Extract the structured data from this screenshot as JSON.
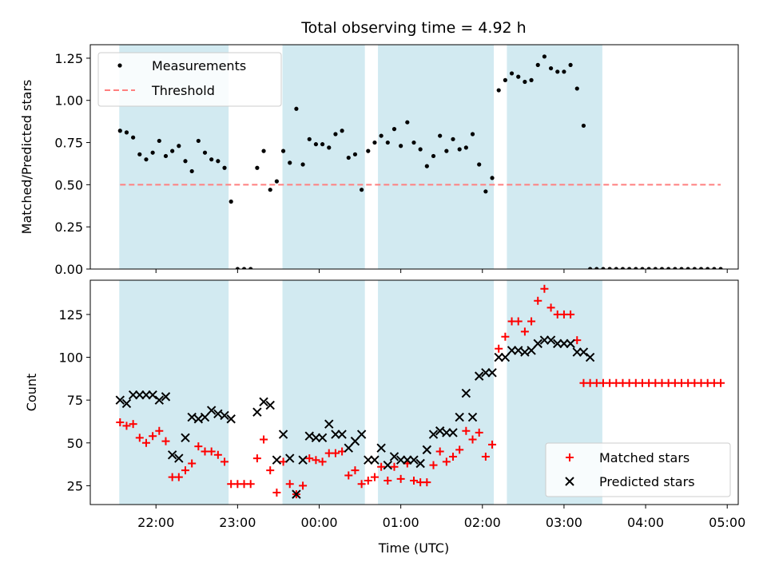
{
  "chart_data": {
    "type": "scatter",
    "title": "Total observing time = 4.92 h",
    "xlabel": "Time (UTC)",
    "x_ticks": [
      "22:00",
      "23:00",
      "00:00",
      "01:00",
      "02:00",
      "03:00",
      "04:00",
      "05:00"
    ],
    "x_tick_hours": [
      0,
      1,
      2,
      3,
      4,
      5,
      6,
      7
    ],
    "x_range_hours": [
      -0.805,
      7.135
    ],
    "shaded_bands_hours": [
      [
        -0.45,
        0.89
      ],
      [
        1.55,
        2.56
      ],
      [
        2.72,
        4.14
      ],
      [
        4.3,
        5.47
      ]
    ],
    "band_color": "#add8e6",
    "x_hours": [
      -0.44,
      -0.36,
      -0.28,
      -0.2,
      -0.12,
      -0.04,
      0.04,
      0.12,
      0.2,
      0.28,
      0.36,
      0.44,
      0.52,
      0.6,
      0.68,
      0.76,
      0.84,
      0.92,
      1.0,
      1.08,
      1.16,
      1.24,
      1.32,
      1.4,
      1.48,
      1.56,
      1.64,
      1.72,
      1.8,
      1.88,
      1.96,
      2.04,
      2.12,
      2.2,
      2.28,
      2.36,
      2.44,
      2.52,
      2.6,
      2.68,
      2.76,
      2.84,
      2.92,
      3.0,
      3.08,
      3.16,
      3.24,
      3.32,
      3.4,
      3.48,
      3.56,
      3.64,
      3.72,
      3.8,
      3.88,
      3.96,
      4.04,
      4.12,
      4.2,
      4.28,
      4.36,
      4.44,
      4.52,
      4.6,
      4.68,
      4.76,
      4.84,
      4.92,
      5.0,
      5.08,
      5.16,
      5.24,
      5.32,
      5.4,
      5.48,
      5.56,
      5.64,
      5.72,
      5.8,
      5.88,
      5.96,
      6.04,
      6.12,
      6.2,
      6.28,
      6.36,
      6.44,
      6.52,
      6.6,
      6.68,
      6.76,
      6.84,
      6.92
    ],
    "panels": [
      {
        "ylabel": "Matched/Predicted stars",
        "ylim": [
          0,
          1.33
        ],
        "y_ticks": [
          "0.00",
          "0.25",
          "0.50",
          "0.75",
          "1.00",
          "1.25"
        ],
        "y_tick_values": [
          0,
          0.25,
          0.5,
          0.75,
          1.0,
          1.25
        ],
        "legend_position": "upper-left",
        "series": [
          {
            "name": "Measurements",
            "marker": "dot",
            "color": "#000000",
            "values": [
              0.82,
              0.81,
              0.78,
              0.68,
              0.65,
              0.69,
              0.76,
              0.67,
              0.7,
              0.73,
              0.64,
              0.58,
              0.76,
              0.69,
              0.65,
              0.64,
              0.6,
              0.4,
              0.0,
              0.0,
              0.0,
              0.6,
              0.7,
              0.47,
              0.52,
              0.7,
              0.63,
              0.95,
              0.62,
              0.77,
              0.74,
              0.74,
              0.72,
              0.8,
              0.82,
              0.66,
              0.68,
              0.47,
              0.7,
              0.75,
              0.79,
              0.75,
              0.83,
              0.73,
              0.87,
              0.75,
              0.71,
              0.61,
              0.67,
              0.79,
              0.7,
              0.77,
              0.71,
              0.72,
              0.8,
              0.62,
              0.46,
              0.54,
              1.06,
              1.12,
              1.16,
              1.14,
              1.11,
              1.12,
              1.21,
              1.26,
              1.19,
              1.17,
              1.17,
              1.21,
              1.07,
              0.85,
              0.0,
              0.0,
              0.0,
              0.0,
              0.0,
              0.0,
              0.0,
              0.0,
              0.0,
              0.0,
              0.0,
              0.0,
              0.0,
              0.0,
              0.0,
              0.0,
              0.0,
              0.0,
              0.0,
              0.0,
              0.0
            ]
          },
          {
            "name": "Threshold",
            "marker": "dashed-line",
            "color": "#ff7f7f",
            "x_hours": [
              -0.44,
              6.92
            ],
            "values": [
              0.5,
              0.5
            ]
          }
        ]
      },
      {
        "ylabel": "Count",
        "ylim": [
          14,
          145
        ],
        "y_ticks": [
          "25",
          "50",
          "75",
          "100",
          "125"
        ],
        "y_tick_values": [
          25,
          50,
          75,
          100,
          125
        ],
        "legend_position": "lower-right",
        "series": [
          {
            "name": "Matched stars",
            "marker": "plus",
            "color": "#ff0000",
            "values": [
              62,
              60,
              61,
              53,
              50,
              54,
              57,
              51,
              30,
              30,
              34,
              38,
              48,
              45,
              45,
              43,
              39,
              26,
              26,
              26,
              26,
              41,
              52,
              34,
              21,
              39,
              26,
              20,
              25,
              41,
              40,
              39,
              44,
              44,
              45,
              31,
              34,
              26,
              28,
              30,
              36,
              28,
              36,
              29,
              38,
              28,
              27,
              27,
              37,
              45,
              39,
              42,
              46,
              57,
              52,
              56,
              42,
              49,
              105,
              112,
              121,
              121,
              115,
              121,
              133,
              140,
              129,
              125,
              125,
              125,
              110,
              85,
              85,
              85,
              85,
              85,
              85,
              85,
              85,
              85,
              85,
              85,
              85,
              85,
              85,
              85,
              85,
              85,
              85,
              85,
              85,
              85,
              85
            ]
          },
          {
            "name": "Predicted stars",
            "marker": "x",
            "color": "#000000",
            "values": [
              75,
              73,
              78,
              78,
              78,
              78,
              75,
              77,
              43,
              41,
              53,
              65,
              64,
              65,
              69,
              67,
              66,
              64,
              null,
              null,
              null,
              68,
              74,
              72,
              40,
              55,
              41,
              20,
              40,
              54,
              53,
              53,
              61,
              55,
              55,
              47,
              51,
              55,
              40,
              40,
              47,
              37,
              42,
              40,
              40,
              40,
              38,
              46,
              55,
              57,
              56,
              56,
              65,
              79,
              65,
              89,
              91,
              91,
              100,
              100,
              104,
              104,
              103,
              104,
              108,
              110,
              110,
              108,
              108,
              108,
              103,
              103,
              100,
              null,
              null,
              null,
              null,
              null,
              null,
              null,
              null,
              null,
              null,
              null,
              null,
              null,
              null,
              null,
              null,
              null,
              null,
              null,
              null
            ]
          }
        ]
      }
    ]
  }
}
